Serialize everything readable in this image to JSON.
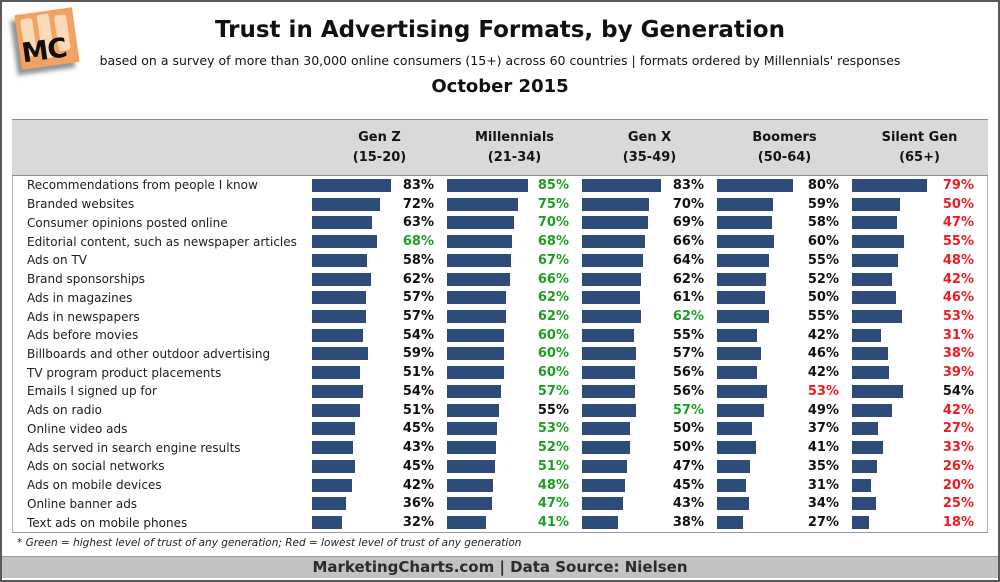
{
  "header": {
    "logo_text": "MC",
    "title": "Trust in Advertising Formats, by Generation",
    "subtitle": "based on a survey of more than 30,000 online consumers (15+) across 60 countries | formats ordered by Millennials' responses",
    "period": "October 2015"
  },
  "footnote": "* Green = highest level of trust of any generation; Red = lowest level of trust of any generation",
  "footer": "MarketingCharts.com | Data Source: Nielsen",
  "colors": {
    "bar": "#2e4c7a",
    "highest_green": "#1f9e25",
    "lowest_red": "#ed1c24",
    "band_gray": "#d9d9d9",
    "footer_gray": "#c2c2c2",
    "logo_orange": "#f2a263"
  },
  "chart_data": {
    "type": "bar",
    "title": "Trust in Advertising Formats, by Generation",
    "subtitle": "based on a survey of more than 30,000 online consumers (15+) across 60 countries | formats ordered by Millennials' responses",
    "date": "October 2015",
    "value_unit": "%",
    "value_range": [
      0,
      100
    ],
    "orientation": "horizontal",
    "color_coding": {
      "green": "highest level of trust of any generation",
      "red": "lowest level of trust of any generation"
    },
    "columns": [
      {
        "label": "Gen Z",
        "range": "(15-20)"
      },
      {
        "label": "Millennials",
        "range": "(21-34)"
      },
      {
        "label": "Gen X",
        "range": "(35-49)"
      },
      {
        "label": "Boomers",
        "range": "(50-64)"
      },
      {
        "label": "Silent Gen",
        "range": "(65+)"
      }
    ],
    "rows": [
      {
        "label": "Recommendations from people I know",
        "values": [
          83,
          85,
          83,
          80,
          79
        ],
        "flags": [
          "",
          "high",
          "",
          "",
          "low"
        ]
      },
      {
        "label": "Branded websites",
        "values": [
          72,
          75,
          70,
          59,
          50
        ],
        "flags": [
          "",
          "high",
          "",
          "",
          "low"
        ]
      },
      {
        "label": "Consumer opinions posted online",
        "values": [
          63,
          70,
          69,
          58,
          47
        ],
        "flags": [
          "",
          "high",
          "",
          "",
          "low"
        ]
      },
      {
        "label": "Editorial content, such as newspaper articles",
        "values": [
          68,
          68,
          66,
          60,
          55
        ],
        "flags": [
          "high",
          "high",
          "",
          "",
          "low"
        ]
      },
      {
        "label": "Ads on TV",
        "values": [
          58,
          67,
          64,
          55,
          48
        ],
        "flags": [
          "",
          "high",
          "",
          "",
          "low"
        ]
      },
      {
        "label": "Brand sponsorships",
        "values": [
          62,
          66,
          62,
          52,
          42
        ],
        "flags": [
          "",
          "high",
          "",
          "",
          "low"
        ]
      },
      {
        "label": "Ads in magazines",
        "values": [
          57,
          62,
          61,
          50,
          46
        ],
        "flags": [
          "",
          "high",
          "",
          "",
          "low"
        ]
      },
      {
        "label": "Ads in newspapers",
        "values": [
          57,
          62,
          62,
          55,
          53
        ],
        "flags": [
          "",
          "high",
          "high",
          "",
          "low"
        ]
      },
      {
        "label": "Ads before movies",
        "values": [
          54,
          60,
          55,
          42,
          31
        ],
        "flags": [
          "",
          "high",
          "",
          "",
          "low"
        ]
      },
      {
        "label": "Billboards and other outdoor advertising",
        "values": [
          59,
          60,
          57,
          46,
          38
        ],
        "flags": [
          "",
          "high",
          "",
          "",
          "low"
        ]
      },
      {
        "label": "TV program product placements",
        "values": [
          51,
          60,
          56,
          42,
          39
        ],
        "flags": [
          "",
          "high",
          "",
          "",
          "low"
        ]
      },
      {
        "label": "Emails I signed up for",
        "values": [
          54,
          57,
          56,
          53,
          54
        ],
        "flags": [
          "",
          "high",
          "",
          "low",
          ""
        ]
      },
      {
        "label": "Ads on radio",
        "values": [
          51,
          55,
          57,
          49,
          42
        ],
        "flags": [
          "",
          "",
          "high",
          "",
          "low"
        ]
      },
      {
        "label": "Online video ads",
        "values": [
          45,
          53,
          50,
          37,
          27
        ],
        "flags": [
          "",
          "high",
          "",
          "",
          "low"
        ]
      },
      {
        "label": "Ads served in search engine results",
        "values": [
          43,
          52,
          50,
          41,
          33
        ],
        "flags": [
          "",
          "high",
          "",
          "",
          "low"
        ]
      },
      {
        "label": "Ads on social networks",
        "values": [
          45,
          51,
          47,
          35,
          26
        ],
        "flags": [
          "",
          "high",
          "",
          "",
          "low"
        ]
      },
      {
        "label": "Ads on mobile devices",
        "values": [
          42,
          48,
          45,
          31,
          20
        ],
        "flags": [
          "",
          "high",
          "",
          "",
          "low"
        ]
      },
      {
        "label": "Online banner ads",
        "values": [
          36,
          47,
          43,
          34,
          25
        ],
        "flags": [
          "",
          "high",
          "",
          "",
          "low"
        ]
      },
      {
        "label": "Text ads on mobile phones",
        "values": [
          32,
          41,
          38,
          27,
          18
        ],
        "flags": [
          "",
          "high",
          "",
          "",
          "low"
        ]
      }
    ]
  }
}
